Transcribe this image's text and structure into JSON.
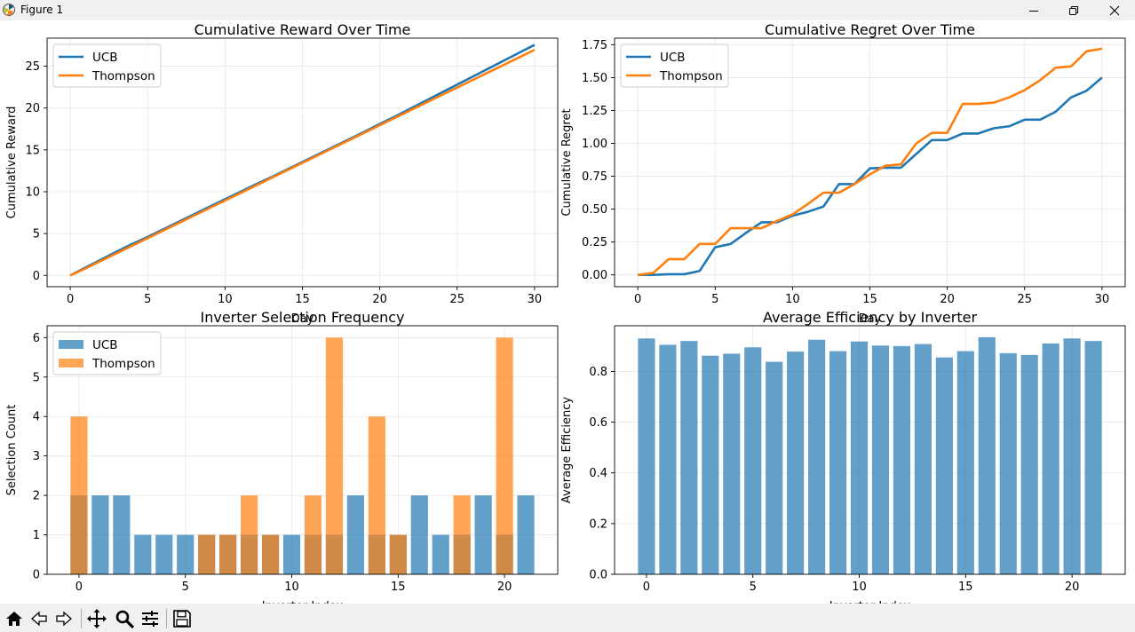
{
  "window": {
    "title": "Figure 1"
  },
  "toolbar": {
    "buttons": [
      {
        "name": "home-icon"
      },
      {
        "name": "back-icon"
      },
      {
        "name": "forward-icon"
      },
      {
        "name": "pan-icon"
      },
      {
        "name": "zoom-icon"
      },
      {
        "name": "subplots-icon"
      },
      {
        "name": "save-icon"
      }
    ]
  },
  "colors": {
    "ucb": "#1f77b4",
    "thompson": "#ff7f0e"
  },
  "chart_data": [
    {
      "type": "line",
      "title": "Cumulative Reward Over Time",
      "xlabel": "Day",
      "ylabel": "Cumulative Reward",
      "xlim": [
        -1.5,
        31.5
      ],
      "ylim": [
        -1.35,
        28.35
      ],
      "xticks": [
        0,
        5,
        10,
        15,
        20,
        25,
        30
      ],
      "yticks": [
        0,
        5,
        10,
        15,
        20,
        25
      ],
      "grid": true,
      "legend": "top-left",
      "x": [
        0,
        1,
        2,
        3,
        4,
        5,
        6,
        7,
        8,
        9,
        10,
        11,
        12,
        13,
        14,
        15,
        16,
        17,
        18,
        19,
        20,
        21,
        22,
        23,
        24,
        25,
        26,
        27,
        28,
        29,
        30
      ],
      "series": [
        {
          "name": "UCB",
          "values": [
            0,
            0.95,
            1.9,
            2.85,
            3.75,
            4.6,
            5.5,
            6.4,
            7.3,
            8.2,
            9.1,
            10.0,
            10.9,
            11.75,
            12.65,
            13.55,
            14.45,
            15.35,
            16.25,
            17.15,
            18.1,
            19.0,
            19.95,
            20.9,
            21.85,
            22.8,
            23.75,
            24.7,
            25.65,
            26.6,
            27.55
          ]
        },
        {
          "name": "Thompson",
          "values": [
            0,
            0.85,
            1.75,
            2.65,
            3.55,
            4.45,
            5.35,
            6.25,
            7.15,
            8.05,
            8.95,
            9.85,
            10.75,
            11.65,
            12.55,
            13.45,
            14.35,
            15.25,
            16.15,
            17.05,
            17.95,
            18.85,
            19.75,
            20.65,
            21.55,
            22.45,
            23.35,
            24.25,
            25.15,
            26.05,
            26.95
          ]
        }
      ]
    },
    {
      "type": "line",
      "title": "Cumulative Regret Over Time",
      "xlabel": "Day",
      "ylabel": "Cumulative Regret",
      "xlim": [
        -1.5,
        31.5
      ],
      "ylim": [
        -0.09,
        1.8
      ],
      "xticks": [
        0,
        5,
        10,
        15,
        20,
        25,
        30
      ],
      "yticks": [
        0.0,
        0.25,
        0.5,
        0.75,
        1.0,
        1.25,
        1.5,
        1.75
      ],
      "ytick_labels": [
        "0.00",
        "0.25",
        "0.50",
        "0.75",
        "1.00",
        "1.25",
        "1.50",
        "1.75"
      ],
      "grid": true,
      "legend": "top-left",
      "x": [
        0,
        1,
        2,
        3,
        4,
        5,
        6,
        7,
        8,
        9,
        10,
        11,
        12,
        13,
        14,
        15,
        16,
        17,
        18,
        19,
        20,
        21,
        22,
        23,
        24,
        25,
        26,
        27,
        28,
        29,
        30
      ],
      "series": [
        {
          "name": "UCB",
          "values": [
            0,
            0,
            0.005,
            0.005,
            0.03,
            0.21,
            0.235,
            0.32,
            0.4,
            0.4,
            0.45,
            0.48,
            0.52,
            0.69,
            0.69,
            0.81,
            0.815,
            0.815,
            0.92,
            1.025,
            1.025,
            1.075,
            1.075,
            1.115,
            1.13,
            1.18,
            1.18,
            1.24,
            1.35,
            1.4,
            1.5
          ]
        },
        {
          "name": "Thompson",
          "values": [
            0,
            0.015,
            0.12,
            0.12,
            0.235,
            0.235,
            0.355,
            0.355,
            0.355,
            0.41,
            0.46,
            0.54,
            0.625,
            0.625,
            0.69,
            0.765,
            0.83,
            0.84,
            1.0,
            1.08,
            1.08,
            1.3,
            1.3,
            1.31,
            1.35,
            1.405,
            1.48,
            1.575,
            1.585,
            1.7,
            1.72
          ]
        }
      ]
    },
    {
      "type": "bar",
      "title": "Inverter Selection Frequency",
      "xlabel": "Inverter Index",
      "ylabel": "Selection Count",
      "xlim": [
        -1.5,
        22.5
      ],
      "ylim": [
        0,
        6.3
      ],
      "xticks": [
        0,
        5,
        10,
        15,
        20
      ],
      "yticks": [
        0,
        1,
        2,
        3,
        4,
        5,
        6
      ],
      "grid": true,
      "legend": "top-left",
      "categories": [
        0,
        1,
        2,
        3,
        4,
        5,
        6,
        7,
        8,
        9,
        10,
        11,
        12,
        13,
        14,
        15,
        16,
        17,
        18,
        19,
        20,
        21
      ],
      "series": [
        {
          "name": "UCB",
          "values": [
            2,
            2,
            2,
            1,
            1,
            1,
            1,
            1,
            1,
            1,
            1,
            1,
            1,
            2,
            1,
            1,
            2,
            1,
            1,
            2,
            1,
            2
          ]
        },
        {
          "name": "Thompson",
          "values": [
            4,
            0,
            0,
            0,
            0,
            0,
            1,
            1,
            2,
            1,
            0,
            2,
            6,
            0,
            4,
            1,
            0,
            0,
            2,
            0,
            6,
            0
          ]
        }
      ]
    },
    {
      "type": "bar",
      "title": "Average Efficiency by Inverter",
      "xlabel": "Inverter Index",
      "ylabel": "Average Efficiency",
      "xlim": [
        -1.5,
        22.5
      ],
      "ylim": [
        0,
        0.98
      ],
      "xticks": [
        0,
        5,
        10,
        15,
        20
      ],
      "yticks": [
        0.0,
        0.2,
        0.4,
        0.6,
        0.8
      ],
      "ytick_labels": [
        "0.0",
        "0.2",
        "0.4",
        "0.6",
        "0.8"
      ],
      "grid": true,
      "categories": [
        0,
        1,
        2,
        3,
        4,
        5,
        6,
        7,
        8,
        9,
        10,
        11,
        12,
        13,
        14,
        15,
        16,
        17,
        18,
        19,
        20,
        21
      ],
      "values": [
        0.93,
        0.905,
        0.92,
        0.862,
        0.87,
        0.895,
        0.838,
        0.878,
        0.925,
        0.88,
        0.918,
        0.902,
        0.9,
        0.908,
        0.855,
        0.88,
        0.935,
        0.872,
        0.865,
        0.91,
        0.93,
        0.92
      ]
    }
  ]
}
